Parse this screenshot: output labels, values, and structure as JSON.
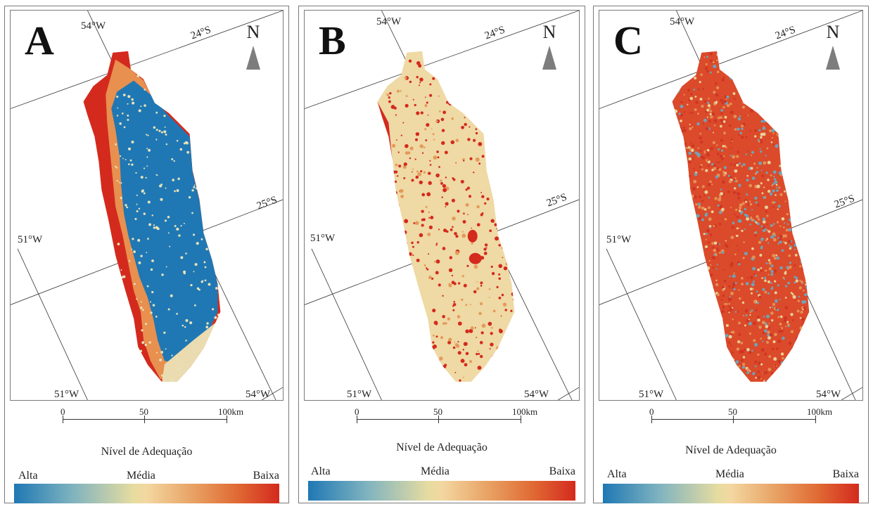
{
  "panels": [
    {
      "letter": "A",
      "north": "N",
      "coords": {
        "top_lon": "54°W",
        "top_lat": "24°S",
        "mid_lat": "25°S",
        "left_lon": "51°W",
        "bottom_lon_left": "51°W",
        "bottom_lon_right": "54°W"
      },
      "scale": {
        "s0": "0",
        "s50": "50",
        "s100": "100km"
      },
      "legend_title": "Nível de Adequação",
      "legend": {
        "high": "Alta",
        "mid": "Média",
        "low": "Baixa"
      },
      "pattern": "zones"
    },
    {
      "letter": "B",
      "north": "N",
      "coords": {
        "top_lon": "54°W",
        "top_lat": "24°S",
        "mid_lat": "25°S",
        "left_lon": "51°W",
        "bottom_lon_left": "51°W",
        "bottom_lon_right": "54°W"
      },
      "scale": {
        "s0": "0",
        "s50": "50",
        "s100": "100km"
      },
      "legend_title": "Nível de Adequação",
      "legend": {
        "high": "Alta",
        "mid": "Média",
        "low": "Baixa"
      },
      "pattern": "beige"
    },
    {
      "letter": "C",
      "north": "N",
      "coords": {
        "top_lon": "54°W",
        "top_lat": "24°S",
        "mid_lat": "25°S",
        "left_lon": "51°W",
        "bottom_lon_left": "51°W",
        "bottom_lon_right": "54°W"
      },
      "scale": {
        "s0": "0",
        "s50": "50",
        "s100": "100km"
      },
      "legend_title": "Nível de Adequação",
      "legend": {
        "high": "Alta",
        "mid": "Média",
        "low": "Baixa"
      },
      "pattern": "mixed"
    }
  ],
  "colors": {
    "high": "#1f78b4",
    "mid": "#f3d7a0",
    "low": "#d42a1e",
    "mid_low": "#e8904f",
    "frame": "#7a7a7a",
    "north_arrow": "#7d7d7d"
  }
}
